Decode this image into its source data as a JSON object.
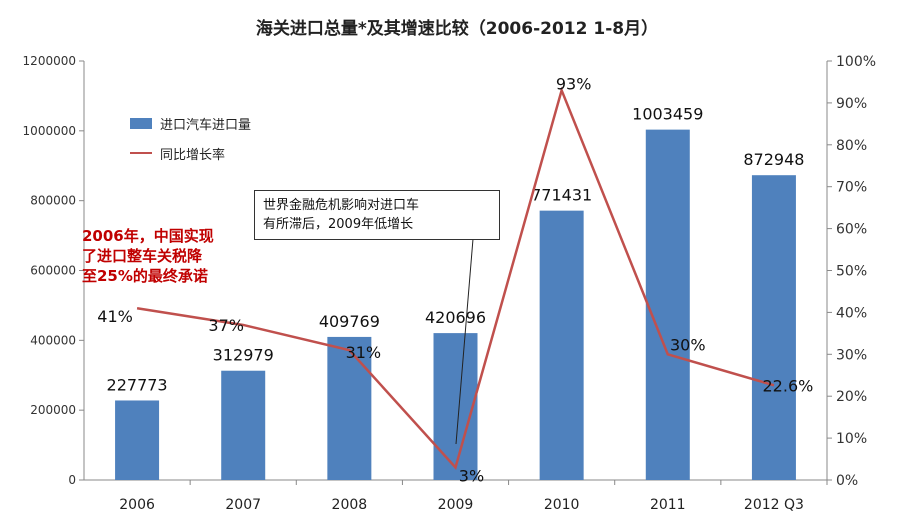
{
  "chart_data": {
    "type": "bar",
    "title": "海关进口总量*及其增速比较（2006-2012  1-8月）",
    "categories": [
      "2006",
      "2007",
      "2008",
      "2009",
      "2010",
      "2011",
      "2012 Q3"
    ],
    "series": [
      {
        "name": "进口汽车进口量",
        "type": "bar",
        "axis": "left",
        "color": "#4f81bd",
        "values": [
          227773,
          312979,
          409769,
          420696,
          771431,
          1003459,
          872948
        ],
        "labels": [
          "227773",
          "312979",
          "409769",
          "420696",
          "771431",
          "1003459",
          "872948"
        ]
      },
      {
        "name": "同比增长率",
        "type": "line",
        "axis": "right",
        "color": "#c0504d",
        "values": [
          41,
          37,
          31,
          3,
          93,
          30,
          22.6
        ],
        "labels": [
          "41%",
          "37%",
          "31%",
          "3%",
          "93%",
          "30%",
          "22.6%"
        ]
      }
    ],
    "y_left": {
      "min": 0,
      "max": 1200000,
      "ticks": [
        "0",
        "200000",
        "400000",
        "600000",
        "800000",
        "1000000",
        "1200000"
      ]
    },
    "y_right": {
      "min": 0,
      "max": 100,
      "ticks": [
        "0%",
        "10%",
        "20%",
        "30%",
        "40%",
        "50%",
        "60%",
        "70%",
        "80%",
        "90%",
        "100%"
      ]
    },
    "grid": false,
    "legend_position": "top-left",
    "annotations": {
      "callout_line1": "世界金融危机影响对进口车",
      "callout_line2": "有所滞后，2009年低增长",
      "note_line1": "2006年，中国实现",
      "note_line2": "了进口整车关税降",
      "note_line3": "至25%的最终承诺"
    }
  }
}
